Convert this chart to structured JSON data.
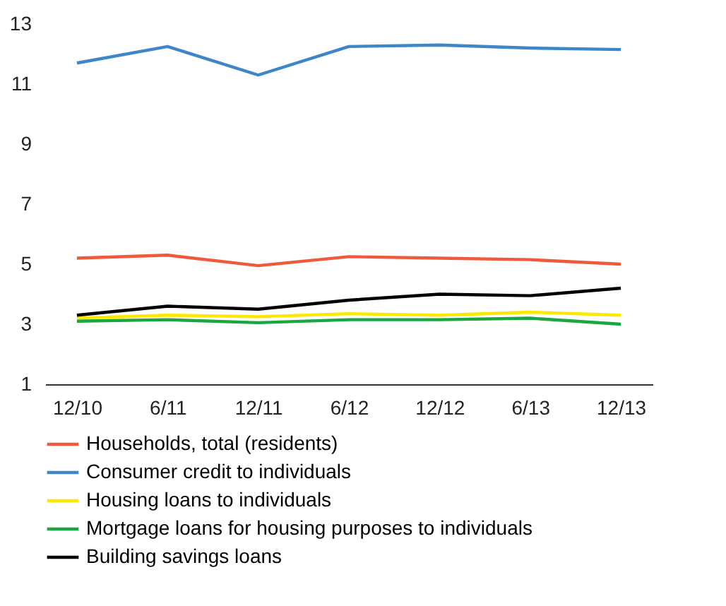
{
  "chart_data": {
    "type": "line",
    "categories": [
      "12/10",
      "6/11",
      "12/11",
      "6/12",
      "12/12",
      "6/13",
      "12/13"
    ],
    "series": [
      {
        "name": "Households, total (residents)",
        "color": "#f05a3c",
        "values": [
          5.2,
          5.3,
          4.95,
          5.25,
          5.2,
          5.15,
          5.0
        ]
      },
      {
        "name": "Consumer credit to individuals",
        "color": "#3f86c8",
        "values": [
          11.7,
          12.25,
          11.3,
          12.25,
          12.3,
          12.2,
          12.15
        ]
      },
      {
        "name": "Housing loans to individuals",
        "color": "#ffe800",
        "values": [
          3.2,
          3.3,
          3.25,
          3.35,
          3.3,
          3.4,
          3.3
        ]
      },
      {
        "name": "Mortgage loans for housing purposes to individuals",
        "color": "#1aa640",
        "values": [
          3.1,
          3.15,
          3.05,
          3.15,
          3.15,
          3.2,
          3.0
        ]
      },
      {
        "name": "Building savings loans",
        "color": "#000000",
        "values": [
          3.3,
          3.6,
          3.5,
          3.8,
          4.0,
          3.95,
          4.2
        ]
      }
    ],
    "ylim": [
      1,
      13
    ],
    "yticks": [
      1,
      3,
      5,
      7,
      9,
      11,
      13
    ],
    "grid": false,
    "legend": "bottom"
  }
}
